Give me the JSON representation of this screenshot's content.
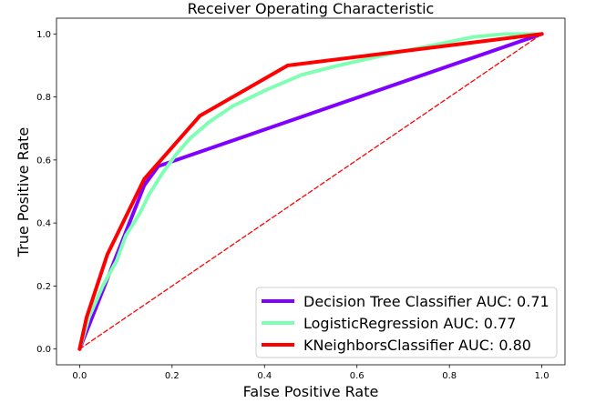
{
  "chart_data": {
    "type": "line",
    "title": "Receiver Operating Characteristic",
    "xlabel": "False Positive Rate",
    "ylabel": "True Positive Rate",
    "xlim": [
      -0.05,
      1.05
    ],
    "ylim": [
      -0.05,
      1.05
    ],
    "xticks": [
      0.0,
      0.2,
      0.4,
      0.6,
      0.8,
      1.0
    ],
    "yticks": [
      0.0,
      0.2,
      0.4,
      0.6,
      0.8,
      1.0
    ],
    "xtick_labels": [
      "0.0",
      "0.2",
      "0.4",
      "0.6",
      "0.8",
      "1.0"
    ],
    "ytick_labels": [
      "0.0",
      "0.2",
      "0.4",
      "0.6",
      "0.8",
      "1.0"
    ],
    "grid": false,
    "legend_position": "lower-right",
    "series": [
      {
        "name": "Decision Tree Classifier AUC: 0.71",
        "color": "#7f00ff",
        "style": "solid",
        "x": [
          0.0,
          0.14,
          0.17,
          1.0
        ],
        "y": [
          0.0,
          0.52,
          0.58,
          1.0
        ]
      },
      {
        "name": "LogisticRegression AUC: 0.77",
        "color": "#80ffb4",
        "style": "solid",
        "x": [
          0.0,
          0.02,
          0.05,
          0.08,
          0.1,
          0.13,
          0.15,
          0.18,
          0.21,
          0.24,
          0.28,
          0.33,
          0.4,
          0.48,
          0.56,
          0.65,
          0.75,
          0.85,
          0.92,
          1.0
        ],
        "y": [
          0.0,
          0.1,
          0.2,
          0.28,
          0.36,
          0.43,
          0.49,
          0.56,
          0.62,
          0.67,
          0.72,
          0.77,
          0.82,
          0.87,
          0.9,
          0.93,
          0.96,
          0.99,
          1.0,
          1.0
        ]
      },
      {
        "name": "KNeighborsClassifier AUC: 0.80",
        "color": "#ff0000",
        "style": "solid",
        "x": [
          0.0,
          0.015,
          0.06,
          0.14,
          0.26,
          0.45,
          1.0
        ],
        "y": [
          0.0,
          0.1,
          0.3,
          0.54,
          0.74,
          0.9,
          1.0
        ]
      },
      {
        "name": "",
        "color": "#ff0000",
        "style": "dashed",
        "x": [
          0.0,
          1.0
        ],
        "y": [
          0.0,
          1.0
        ]
      }
    ]
  }
}
